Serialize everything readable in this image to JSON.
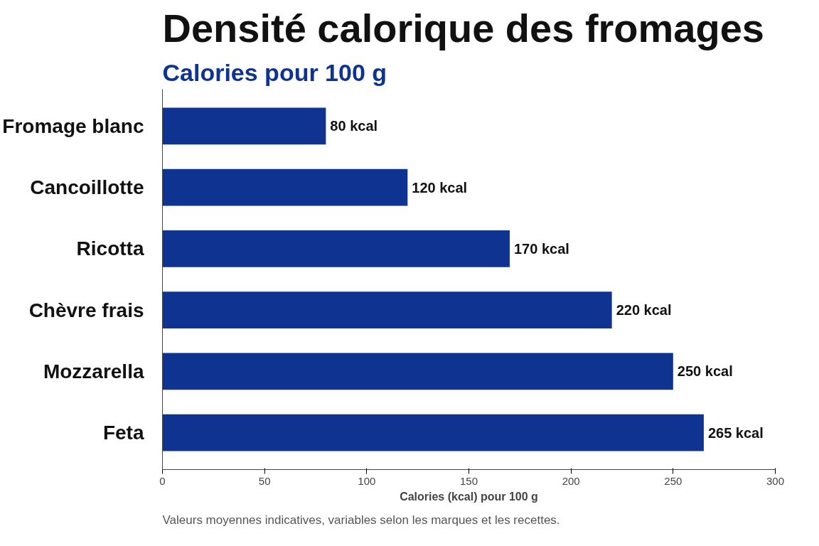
{
  "chart_data": {
    "type": "bar",
    "orientation": "horizontal",
    "title": "Densité calorique des fromages",
    "subtitle": "Calories pour 100 g",
    "categories": [
      "Fromage blanc",
      "Cancoillotte",
      "Ricotta",
      "Chèvre frais",
      "Mozzarella",
      "Feta"
    ],
    "values": [
      80,
      120,
      170,
      220,
      250,
      265
    ],
    "value_labels": [
      "80 kcal",
      "120 kcal",
      "170 kcal",
      "220 kcal",
      "250 kcal",
      "265 kcal"
    ],
    "color": "#0f3391",
    "xlim": [
      0,
      300
    ],
    "xticks": [
      0,
      50,
      100,
      150,
      200,
      250,
      300
    ],
    "xlabel": "Calories (kcal) pour 100 g",
    "grid": false,
    "annotations": [
      "Valeurs moyennes indicatives, variables selon les marques et les recettes."
    ]
  }
}
